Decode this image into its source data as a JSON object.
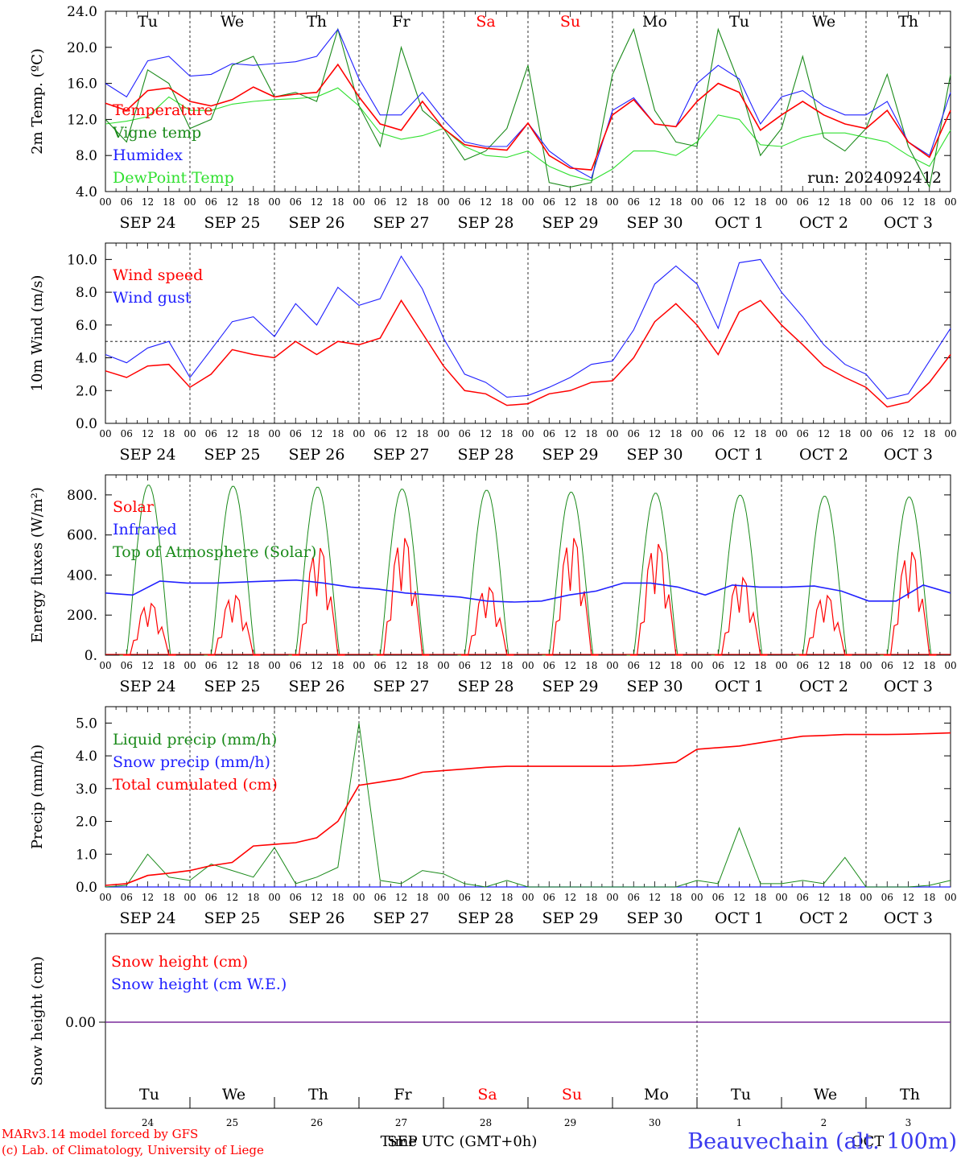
{
  "colors": {
    "red": "#ff0000",
    "green": "#1a8a1a",
    "blue": "#2020ff",
    "lightgreen": "#30e030",
    "purple": "#7a2a9a",
    "black": "#000000"
  },
  "days": [
    "Tu",
    "We",
    "Th",
    "Fr",
    "Sa",
    "Su",
    "Mo",
    "Tu",
    "We",
    "Th"
  ],
  "weekend_days": [
    4,
    5
  ],
  "date_labels": [
    "SEP 24",
    "SEP 25",
    "SEP 26",
    "SEP 27",
    "SEP 28",
    "SEP 29",
    "SEP 30",
    "OCT  1",
    "OCT  2",
    "OCT  3"
  ],
  "hour_labels": [
    "00",
    "06",
    "12",
    "18"
  ],
  "last_hour_label": "00",
  "bottom_dates": [
    "24",
    "25",
    "26",
    "27",
    "28",
    "29",
    "30",
    "1",
    "2",
    "3"
  ],
  "footer": {
    "credit_line1": "MARv3.14 model forced by GFS",
    "credit_line2": "(c) Lab. of Climatology, University of Liege",
    "axis_title": "Time UTC (GMT+0h)",
    "month_left": "SEP",
    "month_right": "OCT",
    "station": "Beauvechain (alt. 100m)"
  },
  "chart_data": [
    {
      "type": "line",
      "ylabel": "2m Temp. (ºC)",
      "ylim": [
        4,
        24
      ],
      "yticks": [
        "4.0",
        "8.0",
        "12.0",
        "16.0",
        "20.0",
        "24.0"
      ],
      "legend": [
        "Temperature",
        "Vigne temp",
        "Humidex",
        "DewPoint Temp"
      ],
      "annotation": "run: 2024092412",
      "x_hours": [
        0,
        6,
        12,
        18,
        24,
        30,
        36,
        42,
        48,
        54,
        60,
        66,
        72,
        78,
        84,
        90,
        96,
        102,
        108,
        114,
        120,
        126,
        132,
        138,
        144,
        150,
        156,
        162,
        168,
        174,
        180,
        186,
        192,
        198,
        204,
        210,
        216,
        222,
        228,
        234,
        240
      ],
      "series": [
        {
          "name": "Temperature",
          "color": "red",
          "values": [
            13.8,
            13.0,
            15.2,
            15.5,
            14.0,
            13.5,
            14.2,
            15.6,
            14.5,
            14.8,
            15.0,
            18.1,
            14.5,
            11.5,
            10.8,
            14.0,
            11.0,
            9.2,
            8.8,
            8.6,
            11.6,
            8.0,
            6.6,
            6.4,
            12.5,
            14.2,
            11.5,
            11.2,
            14.0,
            16.0,
            15.0,
            10.8,
            12.5,
            14.0,
            12.5,
            11.5,
            11.0,
            13.0,
            9.5,
            7.8,
            13.0
          ]
        },
        {
          "name": "Vigne temp",
          "color": "green",
          "values": [
            12.0,
            9.5,
            17.5,
            16.0,
            11.0,
            12.0,
            18.0,
            19.0,
            14.5,
            15.0,
            14.0,
            22.0,
            13.5,
            9.0,
            20.0,
            13.0,
            11.0,
            7.5,
            8.5,
            11.0,
            18.0,
            5.0,
            4.5,
            5.0,
            17.0,
            22.0,
            13.0,
            9.5,
            9.0,
            22.0,
            16.0,
            8.0,
            11.0,
            19.0,
            10.0,
            8.5,
            11.0,
            17.0,
            9.0,
            4.5,
            17.0
          ]
        },
        {
          "name": "Humidex",
          "color": "blue",
          "values": [
            16.0,
            14.5,
            18.5,
            19.0,
            16.8,
            17.0,
            18.2,
            18.0,
            18.2,
            18.4,
            19.0,
            22.0,
            16.5,
            12.5,
            12.5,
            15.0,
            12.0,
            9.5,
            9.0,
            9.0,
            11.6,
            8.5,
            6.8,
            5.5,
            13.0,
            14.4,
            11.5,
            11.2,
            16.0,
            18.0,
            16.5,
            11.5,
            14.5,
            15.2,
            13.5,
            12.5,
            12.5,
            14.0,
            9.5,
            8.0,
            15.0
          ]
        },
        {
          "name": "DewPoint Temp",
          "color": "lightgreen",
          "values": [
            11.5,
            11.8,
            12.3,
            14.5,
            13.0,
            13.0,
            13.7,
            14.0,
            14.2,
            14.3,
            14.5,
            15.5,
            13.5,
            10.5,
            9.8,
            10.2,
            11.0,
            9.0,
            8.0,
            7.8,
            8.5,
            6.8,
            5.8,
            5.2,
            6.5,
            8.5,
            8.5,
            8.0,
            9.5,
            12.5,
            12.0,
            9.2,
            9.0,
            10.0,
            10.5,
            10.5,
            10.0,
            9.5,
            8.0,
            6.8,
            10.8
          ]
        }
      ]
    },
    {
      "type": "line",
      "ylabel": "10m Wind (m/s)",
      "ylim": [
        0,
        11
      ],
      "yticks": [
        "0.0",
        "2.0",
        "4.0",
        "6.0",
        "8.0",
        "10.0"
      ],
      "legend": [
        "Wind speed",
        "Wind gust"
      ],
      "reference_line": 5,
      "x_hours": [
        0,
        6,
        12,
        18,
        24,
        30,
        36,
        42,
        48,
        54,
        60,
        66,
        72,
        78,
        84,
        90,
        96,
        102,
        108,
        114,
        120,
        126,
        132,
        138,
        144,
        150,
        156,
        162,
        168,
        174,
        180,
        186,
        192,
        198,
        204,
        210,
        216,
        222,
        228,
        234,
        240
      ],
      "series": [
        {
          "name": "Wind speed",
          "color": "red",
          "values": [
            3.2,
            2.8,
            3.5,
            3.6,
            2.2,
            3.0,
            4.5,
            4.2,
            4.0,
            5.0,
            4.2,
            5.0,
            4.8,
            5.2,
            7.5,
            5.5,
            3.5,
            2.0,
            1.8,
            1.1,
            1.2,
            1.8,
            2.0,
            2.5,
            2.6,
            4.0,
            6.2,
            7.3,
            6.0,
            4.2,
            6.8,
            7.5,
            6.0,
            4.8,
            3.5,
            2.8,
            2.2,
            1.0,
            1.3,
            2.5,
            4.2
          ]
        },
        {
          "name": "Wind gust",
          "color": "blue",
          "values": [
            4.2,
            3.7,
            4.6,
            5.0,
            2.8,
            4.5,
            6.2,
            6.5,
            5.3,
            7.3,
            6.0,
            8.3,
            7.2,
            7.6,
            10.2,
            8.2,
            5.2,
            3.0,
            2.5,
            1.6,
            1.7,
            2.2,
            2.8,
            3.6,
            3.8,
            5.7,
            8.5,
            9.6,
            8.5,
            5.8,
            9.8,
            10.0,
            8.0,
            6.5,
            4.8,
            3.6,
            3.0,
            1.5,
            1.8,
            3.8,
            5.8
          ]
        }
      ]
    },
    {
      "type": "line",
      "ylabel": "Energy fluxes (W/m²)",
      "ylim": [
        0,
        900
      ],
      "yticks": [
        "0.",
        "200.",
        "400.",
        "600.",
        "800."
      ],
      "legend": [
        "Solar",
        "Infrared",
        "Top of Atmosphere (Solar)"
      ],
      "daily_peaks": {
        "toa": [
          850,
          845,
          840,
          830,
          825,
          815,
          810,
          800,
          795,
          790
        ],
        "solar": [
          260,
          300,
          540,
          590,
          340,
          590,
          560,
          390,
          300,
          520
        ]
      },
      "infrared_values": [
        310,
        300,
        370,
        360,
        360,
        365,
        370,
        375,
        360,
        340,
        330,
        310,
        300,
        290,
        270,
        265,
        270,
        300,
        320,
        360,
        360,
        340,
        300,
        350,
        340,
        340,
        345,
        320,
        270,
        270,
        350,
        310
      ],
      "series": [
        {
          "name": "Solar",
          "color": "red"
        },
        {
          "name": "Infrared",
          "color": "blue"
        },
        {
          "name": "Top of Atmosphere (Solar)",
          "color": "green"
        }
      ]
    },
    {
      "type": "line",
      "ylabel": "Precip (mm/h)",
      "ylim": [
        0,
        5.5
      ],
      "yticks": [
        "0.0",
        "1.0",
        "2.0",
        "3.0",
        "4.0",
        "5.0"
      ],
      "legend": [
        "Liquid precip (mm/h)",
        "Snow precip (mm/h)",
        "Total cumulated (cm)"
      ],
      "x_hours": [
        0,
        6,
        12,
        18,
        24,
        30,
        36,
        42,
        48,
        54,
        60,
        66,
        72,
        78,
        84,
        90,
        96,
        102,
        108,
        114,
        120,
        126,
        132,
        138,
        144,
        150,
        156,
        162,
        168,
        174,
        180,
        186,
        192,
        198,
        204,
        210,
        216,
        222,
        228,
        234,
        240
      ],
      "series": [
        {
          "name": "Liquid precip (mm/h)",
          "color": "green",
          "values": [
            0,
            0.05,
            1.0,
            0.3,
            0.2,
            0.7,
            0.5,
            0.3,
            1.2,
            0.1,
            0.3,
            0.6,
            5.0,
            0.2,
            0.1,
            0.5,
            0.4,
            0.1,
            0,
            0.2,
            0,
            0,
            0,
            0,
            0,
            0,
            0,
            0,
            0.2,
            0.1,
            1.8,
            0.1,
            0.1,
            0.2,
            0.1,
            0.9,
            0,
            0,
            0,
            0.05,
            0.2
          ]
        },
        {
          "name": "Snow precip (mm/h)",
          "color": "blue",
          "values": [
            0,
            0,
            0,
            0,
            0,
            0,
            0,
            0,
            0,
            0,
            0,
            0,
            0,
            0,
            0,
            0,
            0,
            0,
            0,
            0,
            0,
            0,
            0,
            0,
            0,
            0,
            0,
            0,
            0,
            0,
            0,
            0,
            0,
            0,
            0,
            0,
            0,
            0,
            0,
            0,
            0
          ]
        },
        {
          "name": "Total cumulated (cm)",
          "color": "red",
          "values": [
            0.05,
            0.1,
            0.35,
            0.42,
            0.5,
            0.65,
            0.75,
            1.25,
            1.3,
            1.35,
            1.5,
            2.0,
            3.1,
            3.2,
            3.3,
            3.5,
            3.55,
            3.6,
            3.65,
            3.68,
            3.68,
            3.68,
            3.68,
            3.68,
            3.68,
            3.7,
            3.75,
            3.8,
            4.2,
            4.25,
            4.3,
            4.4,
            4.5,
            4.6,
            4.62,
            4.65,
            4.65,
            4.65,
            4.66,
            4.68,
            4.7
          ]
        }
      ]
    },
    {
      "type": "line",
      "ylabel": "Snow height (cm)",
      "yticks": [
        "0.00"
      ],
      "legend": [
        "Snow height (cm)",
        "Snow height (cm W.E.)"
      ],
      "series": [
        {
          "name": "Snow height (cm)",
          "color": "red",
          "values": [
            0,
            0
          ]
        },
        {
          "name": "Snow height (cm W.E.)",
          "color": "blue",
          "values": [
            0,
            0
          ]
        }
      ]
    }
  ]
}
